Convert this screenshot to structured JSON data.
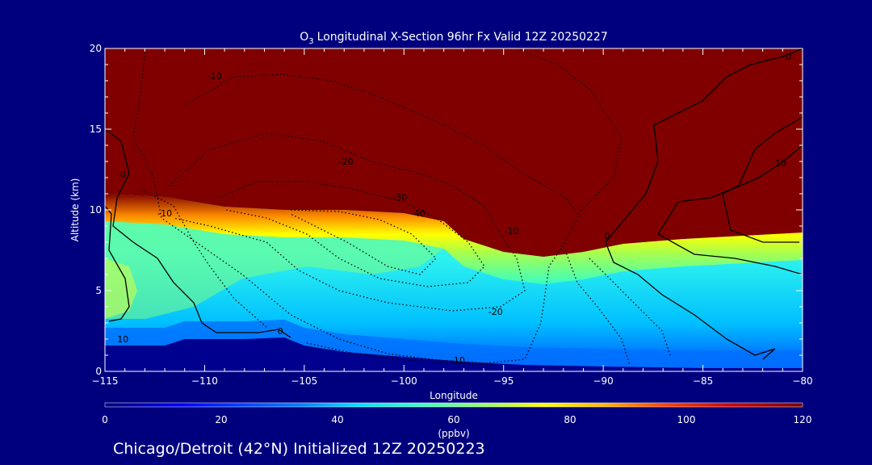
{
  "chart_data": {
    "type": "heatmap",
    "title": "O₃ Longitudinal X-Section 96hr  Fx Valid 12Z 20250227",
    "title_main": "Longitudinal X-Section 96hr  Fx Valid 12Z 20250227",
    "title_species": "O",
    "title_subscript": "3",
    "xlabel": "Longitude",
    "ylabel": "Altitude (km)",
    "xlim": [
      -115,
      -80
    ],
    "ylim": [
      0,
      20
    ],
    "x_ticks": [
      "−115",
      "−110",
      "−105",
      "−100",
      "−95",
      "−90",
      "−85",
      "−80"
    ],
    "x_tick_values": [
      -115,
      -110,
      -105,
      -100,
      -95,
      -90,
      -85,
      -80
    ],
    "y_ticks": [
      "0",
      "5",
      "10",
      "15",
      "20"
    ],
    "y_tick_values": [
      0,
      5,
      10,
      15,
      20
    ],
    "colorbar": {
      "label": "(ppbv)",
      "min": 0,
      "max": 120,
      "ticks": [
        "0",
        "20",
        "40",
        "60",
        "80",
        "100",
        "120"
      ],
      "tick_values": [
        0,
        20,
        40,
        60,
        80,
        100,
        120
      ]
    },
    "tropopause_km": [
      {
        "lon": -115,
        "alt": 11.0
      },
      {
        "lon": -112,
        "alt": 10.8
      },
      {
        "lon": -109,
        "alt": 10.2
      },
      {
        "lon": -106,
        "alt": 10.0
      },
      {
        "lon": -103,
        "alt": 10.0
      },
      {
        "lon": -100,
        "alt": 9.8
      },
      {
        "lon": -98,
        "alt": 9.3
      },
      {
        "lon": -97,
        "alt": 8.2
      },
      {
        "lon": -95,
        "alt": 7.4
      },
      {
        "lon": -93,
        "alt": 7.1
      },
      {
        "lon": -91,
        "alt": 7.4
      },
      {
        "lon": -89,
        "alt": 7.9
      },
      {
        "lon": -86,
        "alt": 8.2
      },
      {
        "lon": -83,
        "alt": 8.4
      },
      {
        "lon": -80,
        "alt": 8.6
      }
    ],
    "surface_km": [
      {
        "lon": -115,
        "alt": 1.6
      },
      {
        "lon": -112,
        "alt": 1.6
      },
      {
        "lon": -111,
        "alt": 2.0
      },
      {
        "lon": -108,
        "alt": 2.0
      },
      {
        "lon": -106,
        "alt": 2.1
      },
      {
        "lon": -105,
        "alt": 1.6
      },
      {
        "lon": -103,
        "alt": 1.2
      },
      {
        "lon": -100,
        "alt": 0.9
      },
      {
        "lon": -97,
        "alt": 0.6
      },
      {
        "lon": -94,
        "alt": 0.4
      },
      {
        "lon": -90,
        "alt": 0.3
      },
      {
        "lon": -85,
        "alt": 0.2
      },
      {
        "lon": -80,
        "alt": 0.2
      }
    ],
    "contour_labels": [
      {
        "text": "-10",
        "lon": -109.5,
        "alt": 18.1
      },
      {
        "text": "0",
        "lon": -80.7,
        "alt": 19.3
      },
      {
        "text": "-20",
        "lon": -102.9,
        "alt": 12.8
      },
      {
        "text": "10",
        "lon": -81.1,
        "alt": 12.7
      },
      {
        "text": "-30",
        "lon": -100.2,
        "alt": 10.6
      },
      {
        "text": "-40",
        "lon": -99.3,
        "alt": 9.6
      },
      {
        "text": "-10",
        "lon": -112.0,
        "alt": 9.6
      },
      {
        "text": "-10",
        "lon": -94.6,
        "alt": 8.5
      },
      {
        "text": "0",
        "lon": -114.1,
        "alt": 12.0
      },
      {
        "text": "0",
        "lon": -89.8,
        "alt": 8.2
      },
      {
        "text": "-20",
        "lon": -95.4,
        "alt": 3.5
      },
      {
        "text": "10",
        "lon": -114.1,
        "alt": 1.8
      },
      {
        "text": "0",
        "lon": -106.2,
        "alt": 2.3
      },
      {
        "text": "-10",
        "lon": -97.3,
        "alt": 0.5
      }
    ],
    "grid": false,
    "legend": "colorbar-bottom"
  },
  "footer": {
    "initialized_text": "Chicago/Detroit (42°N) Initialized 12Z 20250223"
  }
}
